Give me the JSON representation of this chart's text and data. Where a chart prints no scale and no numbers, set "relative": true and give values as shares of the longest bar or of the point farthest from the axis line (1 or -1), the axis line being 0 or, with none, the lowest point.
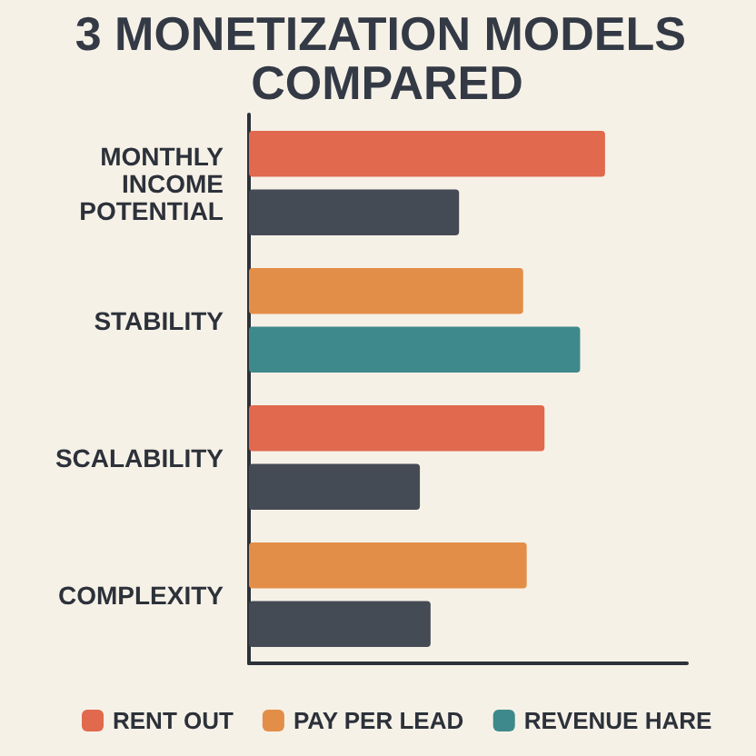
{
  "chart_data": {
    "type": "bar",
    "title": "3 MONETIZATION MODELS COMPARED",
    "orientation": "horizontal",
    "relative": true,
    "categories": [
      "MONTHLY INCOME POTENTIAL",
      "STABILITY",
      "SCALABILITY",
      "COMPLEXITY"
    ],
    "series": [
      {
        "name": "RENT OUT",
        "color": "#e0694e",
        "values": [
          1,
          null,
          0.83,
          null
        ]
      },
      {
        "name": "PAY PER LEAD",
        "color": "#e38e48",
        "values": [
          null,
          0.77,
          null,
          0.78
        ]
      },
      {
        "name": "REVENUE HARE",
        "color": "#3e898b",
        "values": [
          null,
          0.93,
          null,
          null
        ]
      },
      {
        "color": "#454b55",
        "values": [
          0.59,
          null,
          0.48,
          0.51
        ]
      }
    ],
    "legend": "bottom",
    "grid": false
  }
}
